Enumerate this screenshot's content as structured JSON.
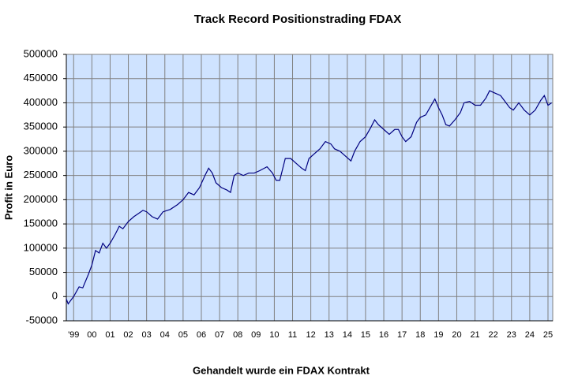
{
  "chart_data": {
    "type": "line",
    "title": "Track Record Positionstrading FDAX",
    "x_label": "Gehandelt wurde ein FDAX Kontrakt",
    "y_label": "Profit in Euro",
    "x": [
      1998.6,
      1998.7,
      1999.0,
      1999.3,
      1999.5,
      1999.8,
      2000.0,
      2000.2,
      2000.4,
      2000.6,
      2000.8,
      2001.0,
      2001.3,
      2001.5,
      2001.7,
      2002.0,
      2002.3,
      2002.5,
      2002.8,
      2003.0,
      2003.3,
      2003.6,
      2003.9,
      2004.3,
      2004.7,
      2005.0,
      2005.3,
      2005.6,
      2005.9,
      2006.2,
      2006.4,
      2006.6,
      2006.8,
      2007.1,
      2007.4,
      2007.6,
      2007.8,
      2008.0,
      2008.3,
      2008.6,
      2008.9,
      2009.2,
      2009.6,
      2009.9,
      2010.1,
      2010.3,
      2010.6,
      2010.9,
      2011.2,
      2011.5,
      2011.7,
      2011.9,
      2012.2,
      2012.5,
      2012.8,
      2013.1,
      2013.3,
      2013.6,
      2013.9,
      2014.2,
      2014.4,
      2014.7,
      2015.0,
      2015.3,
      2015.5,
      2015.7,
      2016.0,
      2016.3,
      2016.6,
      2016.8,
      2017.0,
      2017.2,
      2017.5,
      2017.8,
      2018.0,
      2018.3,
      2018.6,
      2018.8,
      2019.0,
      2019.2,
      2019.4,
      2019.6,
      2019.9,
      2020.2,
      2020.4,
      2020.7,
      2021.0,
      2021.3,
      2021.6,
      2021.8,
      2022.1,
      2022.4,
      2022.6,
      2022.9,
      2023.1,
      2023.4,
      2023.7,
      2024.0,
      2024.3,
      2024.6,
      2024.8,
      2025.0,
      2025.2
    ],
    "series": [
      {
        "name": "Profit",
        "color": "#000080",
        "values": [
          -5000,
          -15000,
          0,
          20000,
          18000,
          45000,
          65000,
          95000,
          90000,
          110000,
          100000,
          110000,
          130000,
          145000,
          140000,
          155000,
          165000,
          170000,
          178000,
          175000,
          165000,
          160000,
          175000,
          180000,
          190000,
          200000,
          215000,
          210000,
          225000,
          250000,
          265000,
          255000,
          235000,
          225000,
          220000,
          215000,
          250000,
          255000,
          250000,
          255000,
          255000,
          260000,
          268000,
          255000,
          240000,
          240000,
          285000,
          285000,
          275000,
          265000,
          260000,
          285000,
          295000,
          305000,
          320000,
          315000,
          305000,
          300000,
          290000,
          280000,
          300000,
          320000,
          330000,
          350000,
          365000,
          355000,
          345000,
          335000,
          345000,
          345000,
          330000,
          320000,
          330000,
          360000,
          370000,
          375000,
          395000,
          408000,
          390000,
          375000,
          355000,
          352000,
          365000,
          380000,
          400000,
          403000,
          395000,
          395000,
          410000,
          425000,
          420000,
          415000,
          405000,
          390000,
          385000,
          400000,
          385000,
          375000,
          385000,
          405000,
          415000,
          395000,
          400000
        ]
      }
    ],
    "xlim": [
      1998.6,
      2025.26
    ],
    "xticks": [
      {
        "value": 1999,
        "label": "'99"
      },
      {
        "value": 2000,
        "label": "00"
      },
      {
        "value": 2001,
        "label": "01"
      },
      {
        "value": 2002,
        "label": "02"
      },
      {
        "value": 2003,
        "label": "03"
      },
      {
        "value": 2004,
        "label": "04"
      },
      {
        "value": 2005,
        "label": "05"
      },
      {
        "value": 2006,
        "label": "06"
      },
      {
        "value": 2007,
        "label": "07"
      },
      {
        "value": 2008,
        "label": "08"
      },
      {
        "value": 2009,
        "label": "09"
      },
      {
        "value": 2010,
        "label": "10"
      },
      {
        "value": 2011,
        "label": "11"
      },
      {
        "value": 2012,
        "label": "12"
      },
      {
        "value": 2013,
        "label": "13"
      },
      {
        "value": 2014,
        "label": "14"
      },
      {
        "value": 2015,
        "label": "15"
      },
      {
        "value": 2016,
        "label": "16"
      },
      {
        "value": 2017,
        "label": "17"
      },
      {
        "value": 2018,
        "label": "18"
      },
      {
        "value": 2019,
        "label": "19"
      },
      {
        "value": 2020,
        "label": "20"
      },
      {
        "value": 2021,
        "label": "21"
      },
      {
        "value": 2022,
        "label": "22"
      },
      {
        "value": 2023,
        "label": "23"
      },
      {
        "value": 2024,
        "label": "24"
      },
      {
        "value": 2025,
        "label": "25"
      }
    ],
    "ylim": [
      -50000,
      500000
    ],
    "yticks": [
      -50000,
      0,
      50000,
      100000,
      150000,
      200000,
      250000,
      300000,
      350000,
      400000,
      450000,
      500000
    ],
    "grid": true,
    "plot_background": "#cfe3ff"
  }
}
